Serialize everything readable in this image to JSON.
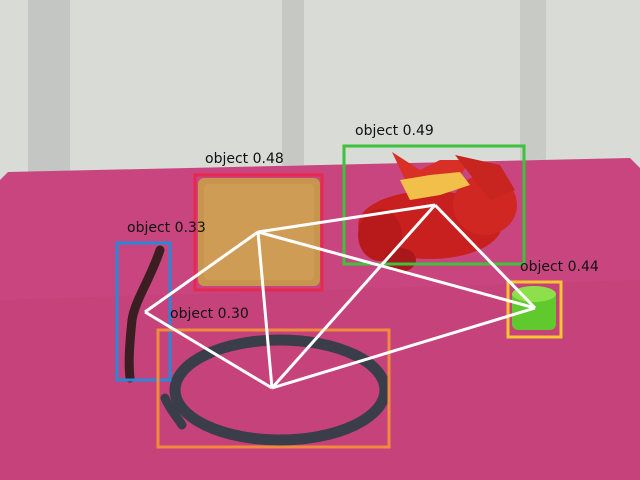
{
  "detections": [
    {
      "label": "object 0.48",
      "color": "#e8284e",
      "name": "sponge"
    },
    {
      "label": "object 0.49",
      "color": "#3cc23c",
      "name": "dragon-toy"
    },
    {
      "label": "object 0.33",
      "color": "#2a86d6",
      "name": "pipe-cleaner"
    },
    {
      "label": "object 0.30",
      "color": "#f08a3c",
      "name": "rope-loop"
    },
    {
      "label": "object 0.44",
      "color": "#f5c531",
      "name": "green-cup"
    }
  ],
  "graph": {
    "edge_color": "#ffffff"
  }
}
